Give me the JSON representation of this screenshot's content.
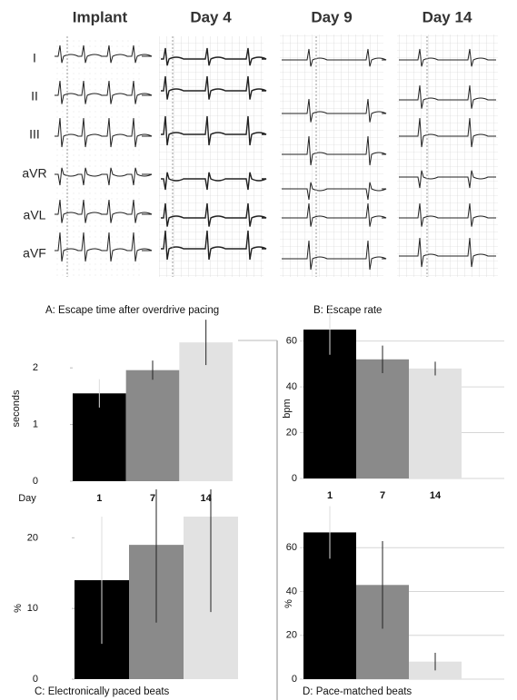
{
  "ecg": {
    "columns": [
      "Implant",
      "Day 4",
      "Day 9",
      "Day 14"
    ],
    "leads": [
      "I",
      "II",
      "III",
      "aVR",
      "aVL",
      "aVF"
    ]
  },
  "chart_data": [
    {
      "type": "bar",
      "title": "A:  Escape time after overdrive pacing",
      "ylabel": "seconds",
      "xlabel": "Day",
      "categories": [
        "1",
        "7",
        "14"
      ],
      "values": [
        1.55,
        1.96,
        2.45
      ],
      "errors": [
        0.25,
        0.17,
        0.4
      ],
      "colors": [
        "#000000",
        "#8a8a8a",
        "#e2e2e2"
      ],
      "ylim": [
        0,
        2.5
      ],
      "yticks": [
        0,
        1,
        2
      ],
      "grid": false
    },
    {
      "type": "bar",
      "title": "B:  Escape rate",
      "ylabel": "bpm",
      "categories": [
        "1",
        "7",
        "14"
      ],
      "values": [
        65,
        52,
        48
      ],
      "errors": [
        11,
        6,
        3
      ],
      "colors": [
        "#000000",
        "#8a8a8a",
        "#e2e2e2"
      ],
      "ylim": [
        0,
        65
      ],
      "yticks": [
        0,
        20,
        40,
        60
      ],
      "grid": true
    },
    {
      "type": "bar",
      "title": "C:  Electronically paced beats",
      "ylabel": "%",
      "values": [
        14,
        19,
        23
      ],
      "errors": [
        9,
        11,
        13.5
      ],
      "colors": [
        "#000000",
        "#8a8a8a",
        "#e2e2e2"
      ],
      "ylim": [
        0,
        23
      ],
      "yticks": [
        0,
        10,
        20
      ],
      "grid": false
    },
    {
      "type": "bar",
      "title": "D:  Pace-matched beats",
      "ylabel": "%",
      "values": [
        67,
        43,
        8
      ],
      "errors": [
        12,
        20,
        4
      ],
      "colors": [
        "#000000",
        "#8a8a8a",
        "#e2e2e2"
      ],
      "ylim": [
        0,
        68
      ],
      "yticks": [
        0,
        20,
        40,
        60
      ],
      "grid": true
    }
  ]
}
